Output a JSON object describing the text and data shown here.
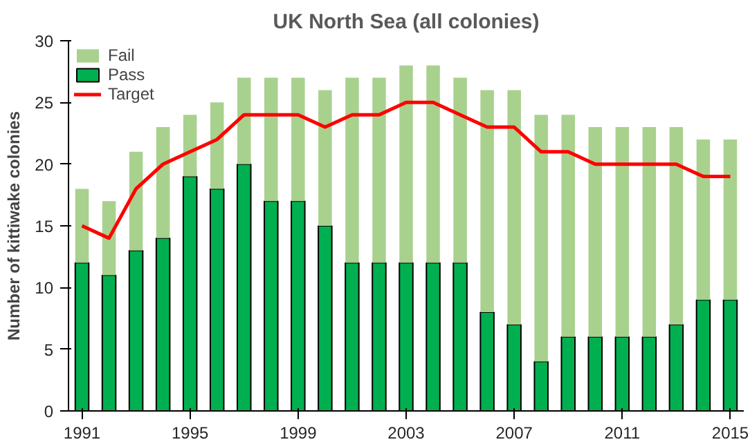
{
  "chart_data": {
    "type": "bar",
    "title": "UK North Sea (all colonies)",
    "ylabel": "Number of kittiwake colonies",
    "x": [
      1991,
      1992,
      1993,
      1994,
      1995,
      1996,
      1997,
      1998,
      1999,
      2000,
      2001,
      2002,
      2003,
      2004,
      2005,
      2006,
      2007,
      2008,
      2009,
      2010,
      2011,
      2012,
      2013,
      2014,
      2015
    ],
    "stacked": true,
    "series": [
      {
        "name": "Pass",
        "color": "#00b050",
        "values": [
          12,
          11,
          13,
          14,
          19,
          18,
          20,
          17,
          17,
          15,
          12,
          12,
          12,
          12,
          12,
          8,
          7,
          4,
          6,
          6,
          6,
          6,
          7,
          9,
          9
        ]
      },
      {
        "name": "Fail",
        "color": "#a9d18e",
        "values": [
          6,
          6,
          8,
          9,
          5,
          7,
          7,
          10,
          10,
          11,
          15,
          15,
          16,
          16,
          15,
          18,
          19,
          20,
          18,
          17,
          17,
          17,
          16,
          13,
          13
        ]
      },
      {
        "name": "Target",
        "type": "line",
        "color": "#ff0000",
        "values": [
          15,
          14,
          18,
          20,
          21,
          22,
          24,
          24,
          24,
          23,
          24,
          24,
          25,
          25,
          24,
          23,
          23,
          21,
          21,
          20,
          20,
          20,
          20,
          19,
          19
        ]
      }
    ],
    "xlim": [
      1990.5,
      2015.5
    ],
    "xticks": [
      1991,
      1995,
      1999,
      2003,
      2007,
      2011,
      2015
    ],
    "ylim": [
      0,
      30
    ],
    "yticks": [
      0,
      5,
      10,
      15,
      20,
      25,
      30
    ],
    "grid": false,
    "legend": "top left"
  }
}
